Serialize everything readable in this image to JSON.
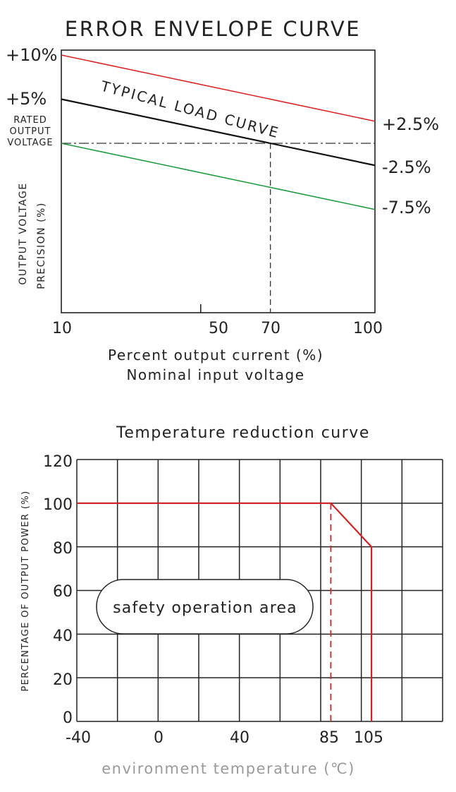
{
  "chart_data": [
    {
      "type": "line",
      "title": "ERROR ENVELOPE CURVE",
      "xlabel": "Percent output current (%)",
      "xlabel2": "Nominal input voltage",
      "ylabel": "OUTPUT VOLTAGE",
      "ylabel2": "PRECISION (%)",
      "x_ticks": [
        10,
        50,
        70,
        100
      ],
      "xlim": [
        10,
        100
      ],
      "left_labels": [
        "+10%",
        "+5%"
      ],
      "rated_label": [
        "RATED",
        "OUTPUT",
        "VOLTAGE"
      ],
      "series": [
        {
          "name": "",
          "color": "#e02020",
          "x": [
            10,
            100
          ],
          "y": [
            10,
            2.5
          ],
          "end_label": "+2.5%"
        },
        {
          "name": "TYPICAL LOAD CURVE",
          "color": "#111111",
          "x": [
            10,
            100
          ],
          "y": [
            5,
            -2.5
          ],
          "end_label": "-2.5%"
        },
        {
          "name": "",
          "color": "#1a9a3a",
          "x": [
            10,
            100
          ],
          "y": [
            0,
            -7.5
          ],
          "end_label": "-7.5%"
        }
      ],
      "reference_lines": {
        "rated_y": 0,
        "x_marker": 70
      }
    },
    {
      "type": "line",
      "title": "Temperature reduction curve",
      "xlabel": "environment temperature (℃)",
      "ylabel": "PERCENTAGE OF OUTPUT POWER (%)",
      "x_ticks": [
        -40,
        0,
        40,
        85,
        105
      ],
      "y_ticks": [
        0,
        20,
        40,
        60,
        80,
        100,
        120
      ],
      "xlim": [
        -40,
        140
      ],
      "ylim": [
        0,
        120
      ],
      "series": [
        {
          "name": "",
          "color": "#d42020",
          "x": [
            -40,
            85,
            105,
            105
          ],
          "y": [
            100,
            100,
            80,
            0
          ]
        }
      ],
      "dashed_x": 85,
      "area_label": "safety operation area"
    }
  ]
}
